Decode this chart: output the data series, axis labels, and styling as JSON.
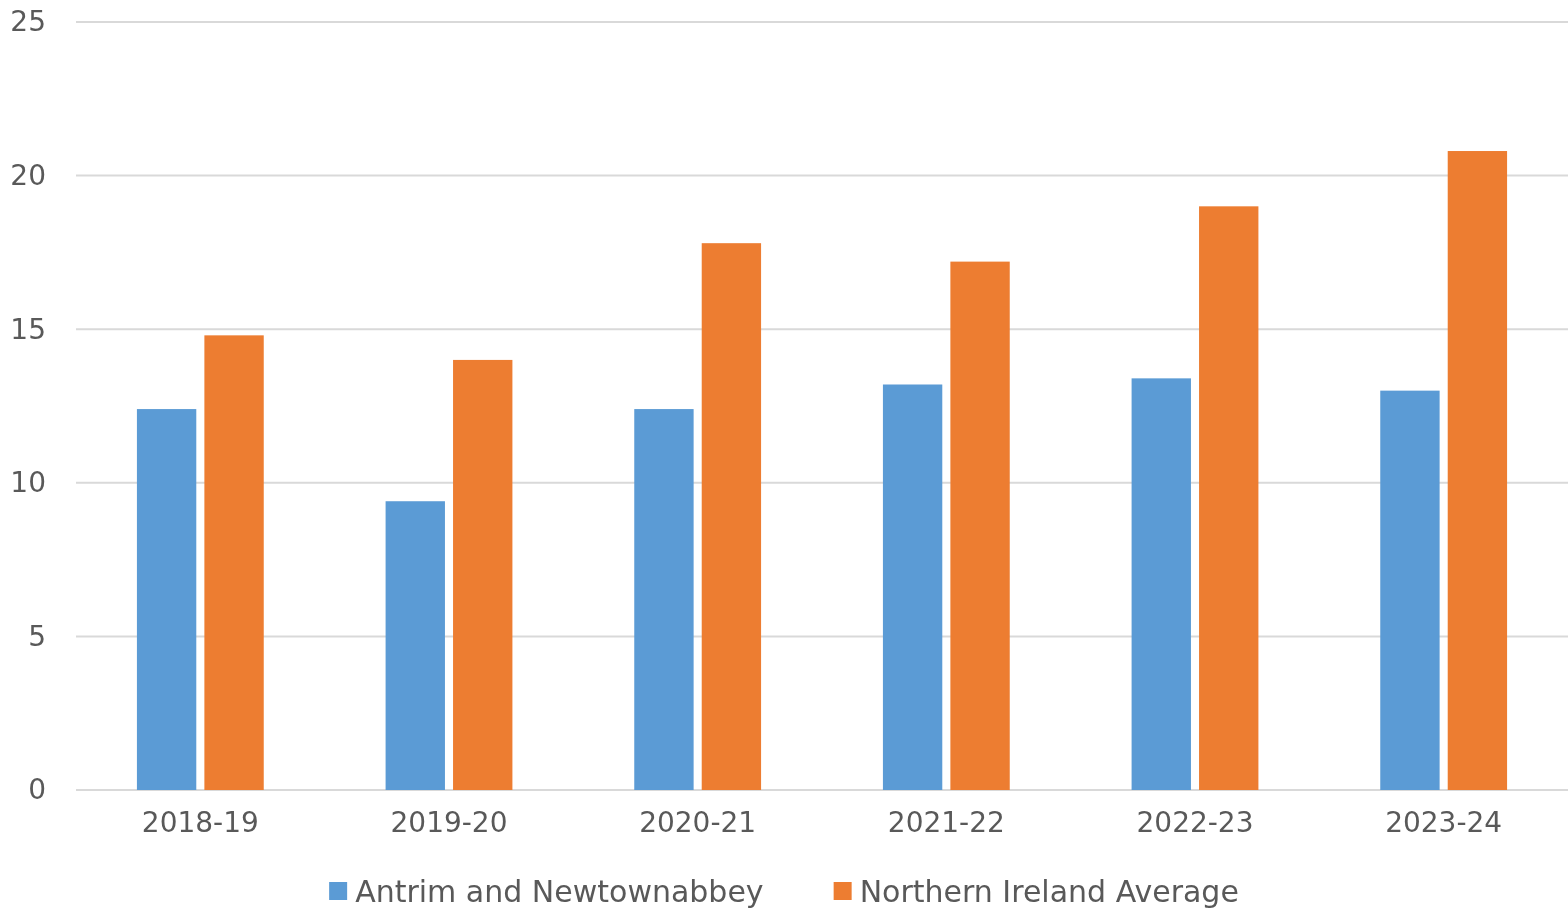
{
  "chart_data": {
    "type": "bar",
    "categories": [
      "2018-19",
      "2019-20",
      "2020-21",
      "2021-22",
      "2022-23",
      "2023-24"
    ],
    "series": [
      {
        "name": "Antrim and Newtownabbey",
        "color": "#5b9bd5",
        "values": [
          12.4,
          9.4,
          12.4,
          13.2,
          13.4,
          13.0
        ]
      },
      {
        "name": "Northern Ireland Average",
        "color": "#ed7d31",
        "values": [
          14.8,
          14.0,
          17.8,
          17.2,
          19.0,
          20.8
        ]
      }
    ],
    "ylim": [
      0,
      25
    ],
    "yticks": [
      0,
      5,
      10,
      15,
      20,
      25
    ],
    "grid": "y",
    "legend": "bottom"
  }
}
